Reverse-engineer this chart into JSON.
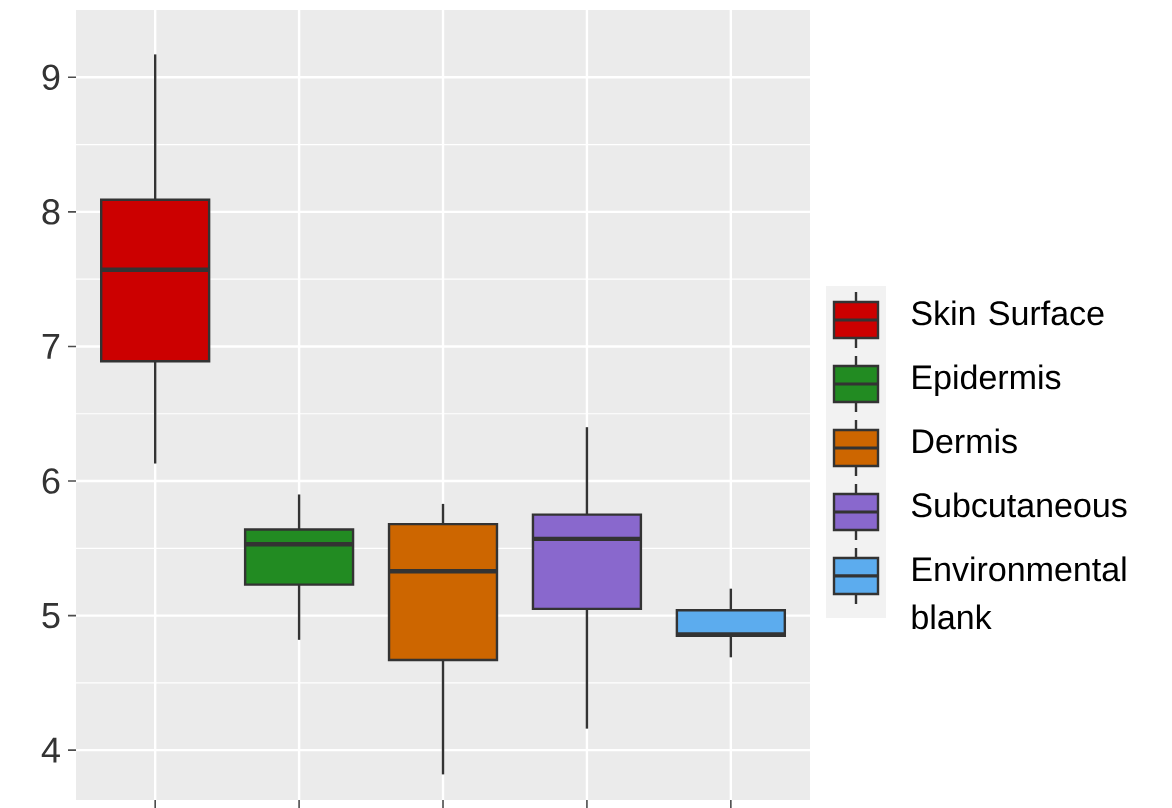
{
  "chart_data": {
    "type": "box",
    "categories": [
      null,
      null,
      null,
      null,
      null
    ],
    "series": [
      {
        "name": "Skin Surface",
        "color": "#cc0000",
        "boxes": [
          {
            "low": 6.13,
            "q1": 6.89,
            "median": 7.57,
            "q3": 8.09,
            "high": 9.17
          },
          null,
          null,
          null,
          null
        ]
      },
      {
        "name": "Epidermis",
        "color": "#228b22",
        "boxes": [
          null,
          {
            "low": 4.82,
            "q1": 5.23,
            "median": 5.53,
            "q3": 5.64,
            "high": 5.9
          },
          null,
          null,
          null
        ]
      },
      {
        "name": "Dermis",
        "color": "#cd6600",
        "boxes": [
          null,
          null,
          {
            "low": 3.82,
            "q1": 4.67,
            "median": 5.33,
            "q3": 5.68,
            "high": 5.83
          },
          null,
          null
        ]
      },
      {
        "name": "Subcutaneous",
        "color": "#8968cd",
        "boxes": [
          null,
          null,
          null,
          {
            "low": 4.16,
            "q1": 5.05,
            "median": 5.57,
            "q3": 5.75,
            "high": 6.4
          },
          null
        ]
      },
      {
        "name": "Environmental blank",
        "color": "#5cacee",
        "boxes": [
          null,
          null,
          null,
          null,
          {
            "low": 4.69,
            "q1": 4.85,
            "median": 4.86,
            "q3": 5.04,
            "high": 5.2
          }
        ]
      }
    ],
    "ylim": [
      3.63,
      9.5
    ],
    "yticks": [
      4,
      5,
      6,
      7,
      8,
      9
    ],
    "grid": true,
    "legend": "right",
    "tick_labels": "y"
  }
}
